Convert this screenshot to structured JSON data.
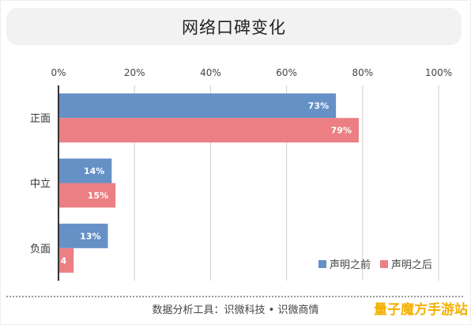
{
  "chart_data": {
    "type": "bar",
    "orientation": "horizontal",
    "title": "网络口碑变化",
    "categories": [
      "正面",
      "中立",
      "负面"
    ],
    "series": [
      {
        "name": "声明之前",
        "values": [
          73,
          14,
          13
        ],
        "labels": [
          "73%",
          "14%",
          "13%"
        ],
        "color": "#6591c7"
      },
      {
        "name": "声明之后",
        "values": [
          79,
          15,
          4
        ],
        "labels": [
          "79%",
          "15%",
          "4"
        ],
        "color": "#eb7f83"
      }
    ],
    "xlim": [
      0,
      100
    ],
    "x_ticks": [
      "0%",
      "20%",
      "40%",
      "60%",
      "80%",
      "100%"
    ],
    "x_tick_values": [
      0,
      20,
      40,
      60,
      80,
      100
    ],
    "x_axis_position": "top",
    "grid": true,
    "legend_position": "bottom-right"
  },
  "source": "数据分析工具：识微科技 • 识微商情",
  "watermark": "量子魔方手游站"
}
